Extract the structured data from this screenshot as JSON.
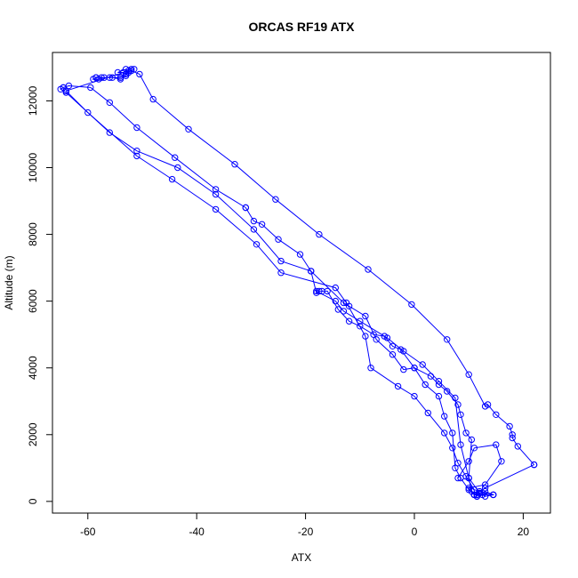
{
  "chart_data": {
    "type": "line",
    "title": "ORCAS RF19 ATX",
    "xlabel": "ATX",
    "ylabel": "Altitude (m)",
    "xlim": [
      -66.5,
      25
    ],
    "ylim": [
      -350,
      13450
    ],
    "xticks": [
      -60,
      -40,
      -20,
      0,
      20
    ],
    "yticks": [
      0,
      2000,
      4000,
      6000,
      8000,
      10000,
      12000
    ],
    "grid": false,
    "legend": "none",
    "marker": "open-circle",
    "color": "#0000ff",
    "series": [
      {
        "x": [
          -51.5,
          -52,
          -50.5,
          -48,
          -41.5,
          -33,
          -25.5,
          -17.5,
          -8.5,
          -0.5,
          6,
          10,
          13,
          13.5,
          15,
          17.5,
          18,
          18,
          19,
          22
        ],
        "y": [
          12950,
          12900,
          12800,
          12050,
          11150,
          10100,
          9050,
          8000,
          6950,
          5900,
          4850,
          3800,
          2850,
          2900,
          2600,
          2250,
          2000,
          1900,
          1650,
          1100
        ]
      },
      {
        "x": [
          22,
          13,
          12,
          11.5,
          12.5,
          13,
          14.5,
          13,
          11
        ],
        "y": [
          1100,
          400,
          300,
          200,
          200,
          150,
          200,
          300,
          200
        ]
      },
      {
        "x": [
          11,
          10,
          8.5,
          7.5,
          7,
          5.5,
          4.5,
          2,
          0,
          -2.5,
          -4,
          -5.5,
          -7.5,
          -10,
          -12,
          -14,
          -16,
          -17,
          -17.5,
          -18,
          -19,
          -21,
          -25,
          -28,
          -29.5,
          -31
        ],
        "y": [
          200,
          350,
          700,
          1000,
          2050,
          2550,
          3150,
          3500,
          4000,
          4550,
          4650,
          4950,
          5000,
          5250,
          5400,
          5750,
          6300,
          6300,
          6300,
          6250,
          6900,
          7400,
          7850,
          8300,
          8400,
          8800
        ]
      },
      {
        "x": [
          -31,
          -36.5,
          -44,
          -51,
          -56,
          -59.5,
          -63.5,
          -64.5
        ],
        "y": [
          8800,
          9350,
          10300,
          11200,
          11950,
          12400,
          12450,
          12400
        ]
      },
      {
        "x": [
          -64.5,
          -65,
          -64,
          -56,
          -51,
          -43.5,
          -36.5,
          -29.5,
          -24.5,
          -19,
          -13,
          -12,
          -9,
          -7,
          -4,
          -2,
          0,
          3,
          4.5,
          6,
          8,
          8.5,
          9.5,
          10.5,
          10,
          12
        ],
        "y": [
          12400,
          12350,
          12250,
          11050,
          10500,
          10000,
          9200,
          8150,
          7200,
          6900,
          5950,
          5850,
          5550,
          4850,
          4400,
          3950,
          4000,
          3750,
          3500,
          3300,
          2900,
          2600,
          2050,
          1850,
          700,
          250
        ]
      },
      {
        "x": [
          12,
          11.5,
          11,
          14.5
        ],
        "y": [
          250,
          200,
          200,
          200
        ]
      },
      {
        "x": [
          14.5,
          11,
          9.5,
          8,
          7,
          5.5,
          2.5,
          0,
          -3,
          -8,
          -9,
          -12.5,
          -14.5,
          -24.5,
          -29,
          -36.5,
          -44.5,
          -51,
          -60,
          -64
        ],
        "y": [
          200,
          350,
          750,
          1150,
          1600,
          2050,
          2650,
          3150,
          3450,
          4000,
          4950,
          5950,
          6400,
          6850,
          7700,
          8750,
          9650,
          10350,
          11650,
          12300
        ]
      },
      {
        "x": [
          -64,
          -52.5,
          -53,
          -54,
          -55.5,
          -57,
          -58,
          -59,
          -58.5,
          -58.5,
          -57.5,
          -56,
          -54,
          -53
        ],
        "y": [
          12300,
          12900,
          12750,
          12650,
          12700,
          12700,
          12650,
          12650,
          12700,
          12700,
          12700,
          12700,
          12700,
          12800
        ]
      },
      {
        "x": [
          -53,
          -53.5,
          -54.5,
          -53,
          -52.5,
          -52
        ],
        "y": [
          12800,
          12850,
          12850,
          12950,
          12850,
          12950
        ]
      },
      {
        "x": [
          8,
          10,
          11,
          15,
          16,
          13,
          10,
          11.5
        ],
        "y": [
          700,
          1200,
          1600,
          1700,
          1200,
          500,
          400,
          150
        ]
      },
      {
        "x": [
          -18,
          -14.5,
          -13,
          -10,
          -5,
          -2,
          1.5,
          4.5,
          7.5,
          8.5,
          10,
          10.5,
          11.5
        ],
        "y": [
          6300,
          6000,
          5700,
          5400,
          4900,
          4500,
          4100,
          3600,
          3100,
          1700,
          700,
          300,
          150
        ]
      }
    ]
  }
}
